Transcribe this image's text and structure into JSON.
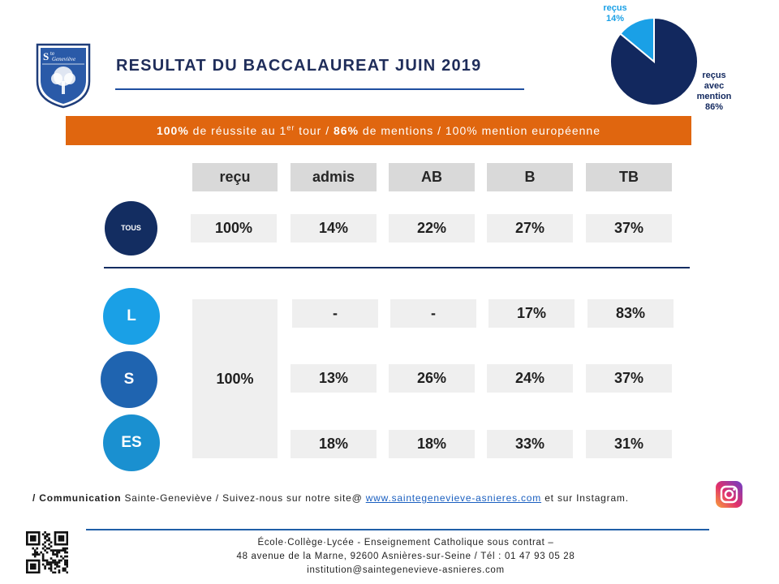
{
  "title": "RESULTAT DU BACCALAUREAT JUIN 2019",
  "banner": {
    "part1_bold": "100%",
    "part1_text": " de réussite au 1",
    "part1_sup": "er",
    "part1_after": " tour / ",
    "part2_bold": "86%",
    "part2_text": " de mentions / 100% mention européenne"
  },
  "pie_labels": {
    "recus": "reçus\n14%",
    "mention": "reçus\navec\nmention\n86%"
  },
  "chart_data": [
    {
      "type": "pie",
      "categories": [
        "reçus",
        "reçus avec mention"
      ],
      "values": [
        14,
        86
      ],
      "colors": [
        "#1aa0e6",
        "#12285e"
      ]
    },
    {
      "type": "table",
      "columns": [
        "reçu",
        "admis",
        "AB",
        "B",
        "TB"
      ],
      "rows": [
        {
          "label": "TOUS",
          "values": [
            "100%",
            "14%",
            "22%",
            "27%",
            "37%"
          ]
        },
        {
          "label": "L",
          "values": [
            "100%",
            "-",
            "-",
            "17%",
            "83%"
          ]
        },
        {
          "label": "S",
          "values": [
            "100%",
            "13%",
            "26%",
            "24%",
            "37%"
          ]
        },
        {
          "label": "ES",
          "values": [
            "100%",
            "18%",
            "18%",
            "33%",
            "31%"
          ]
        }
      ]
    }
  ],
  "footer": {
    "comm_bold": "/ Communication",
    "comm_text": " Sainte-Geneviève / Suivez-nous sur notre site@ ",
    "comm_link": "www.saintegenevieve-asnieres.com",
    "comm_after": " et sur Instagram.",
    "line1": "École·Collège·Lycée - Enseignement Catholique sous contrat –",
    "line2": "48 avenue de la Marne, 92600 Asnières-sur-Seine / Tél : 01 47 93 05 28",
    "line3": "institution@saintegenevieve-asnieres.com"
  },
  "crest": {
    "line1": "S",
    "line2": "te",
    "line3": "Geneviève"
  },
  "icons": {
    "crest": "school-crest-icon",
    "instagram": "instagram-icon",
    "qr": "qr-code-icon"
  },
  "colors": {
    "navy": "#132d61",
    "orange": "#e0660f",
    "light_blue": "#1aa0e6",
    "cell": "#efefef",
    "header": "#d9d9d9"
  }
}
